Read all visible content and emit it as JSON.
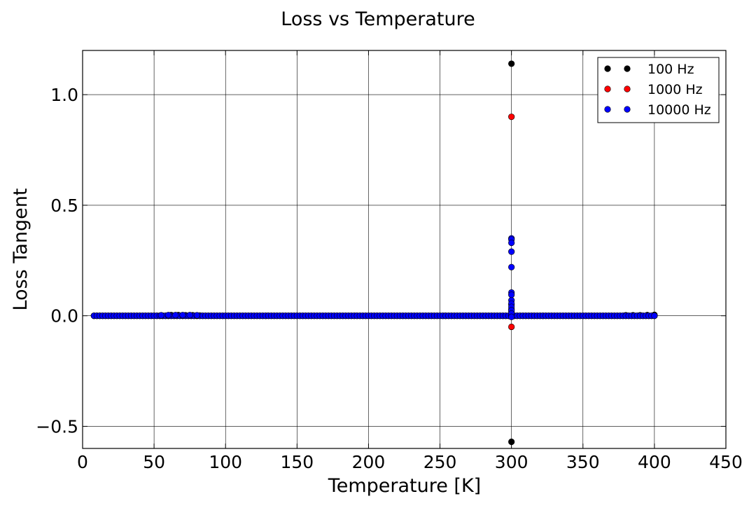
{
  "chart_data": {
    "type": "scatter",
    "title": "Loss vs Temperature",
    "xlabel": "Temperature [K]",
    "ylabel": "Loss Tangent",
    "xlim": [
      0,
      450
    ],
    "ylim": [
      -0.6,
      1.2
    ],
    "xticks": [
      0,
      50,
      100,
      150,
      200,
      250,
      300,
      350,
      400,
      450
    ],
    "yticks": [
      -0.5,
      0.0,
      0.5,
      1.0
    ],
    "xtick_labels": [
      "0",
      "50",
      "100",
      "150",
      "200",
      "250",
      "300",
      "350",
      "400",
      "450"
    ],
    "ytick_labels": [
      "−0.5",
      "0.0",
      "0.5",
      "1.0"
    ],
    "grid": true,
    "legend_position": "top-right",
    "series": [
      {
        "name": "100 Hz",
        "color": "#000000",
        "sweep": {
          "x_start": 8,
          "x_end": 401,
          "x_step": 2,
          "y": 0.0
        },
        "points": [
          {
            "x": 62,
            "y": 0.003
          },
          {
            "x": 67,
            "y": 0.003
          },
          {
            "x": 72,
            "y": 0.002
          },
          {
            "x": 77,
            "y": 0.002
          },
          {
            "x": 82,
            "y": 0.001
          },
          {
            "x": 322,
            "y": 0.0
          },
          {
            "x": 380,
            "y": 0.002
          },
          {
            "x": 385,
            "y": 0.002
          },
          {
            "x": 390,
            "y": 0.002
          },
          {
            "x": 395,
            "y": 0.003
          },
          {
            "x": 400,
            "y": 0.004
          },
          {
            "x": 300,
            "y": 1.14
          },
          {
            "x": 300,
            "y": -0.57
          },
          {
            "x": 300,
            "y": 0.01
          },
          {
            "x": 300,
            "y": 0.0
          }
        ]
      },
      {
        "name": "1000 Hz",
        "color": "#ff0000",
        "sweep": {
          "x_start": 8,
          "x_end": 401,
          "x_step": 2,
          "y": 0.0
        },
        "points": [
          {
            "x": 300,
            "y": 0.9
          },
          {
            "x": 300,
            "y": -0.05
          },
          {
            "x": 300,
            "y": 0.05
          },
          {
            "x": 300,
            "y": 0.03
          },
          {
            "x": 300,
            "y": 0.02
          },
          {
            "x": 300,
            "y": 0.01
          }
        ]
      },
      {
        "name": "10000 Hz",
        "color": "#0000ff",
        "sweep": {
          "x_start": 8,
          "x_end": 401,
          "x_step": 2,
          "y": 0.0
        },
        "points": [
          {
            "x": 55,
            "y": 0.002
          },
          {
            "x": 60,
            "y": 0.003
          },
          {
            "x": 65,
            "y": 0.003
          },
          {
            "x": 70,
            "y": 0.003
          },
          {
            "x": 75,
            "y": 0.003
          },
          {
            "x": 80,
            "y": 0.002
          },
          {
            "x": 300,
            "y": 0.35
          },
          {
            "x": 300,
            "y": 0.345
          },
          {
            "x": 300,
            "y": 0.33
          },
          {
            "x": 300,
            "y": 0.29
          },
          {
            "x": 300,
            "y": 0.22
          },
          {
            "x": 300,
            "y": 0.105
          },
          {
            "x": 300,
            "y": 0.095
          },
          {
            "x": 300,
            "y": 0.07
          },
          {
            "x": 300,
            "y": 0.055
          },
          {
            "x": 300,
            "y": 0.04
          },
          {
            "x": 300,
            "y": 0.025
          },
          {
            "x": 300,
            "y": 0.01
          },
          {
            "x": 300,
            "y": -0.005
          }
        ]
      }
    ]
  }
}
